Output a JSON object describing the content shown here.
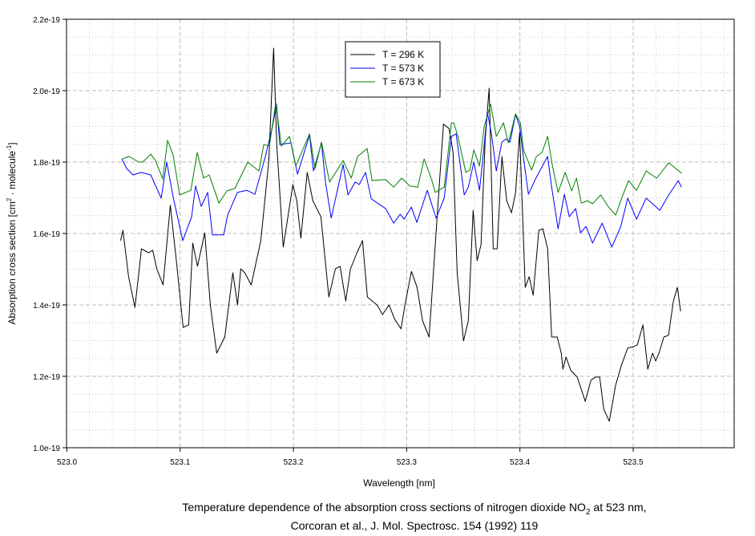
{
  "chart_data": {
    "type": "line",
    "xlabel": "Wavelength [nm]",
    "ylabel": {
      "main": "Absorption cross section [cm",
      "sup1": "2",
      "mid": " · molecule",
      "sup2": "-1",
      "end": "]"
    },
    "xlim": [
      523.0,
      523.59
    ],
    "ylim": [
      1e-19,
      2.2e-19
    ],
    "y_unit": "1e-19",
    "x_ticks": [
      523.0,
      523.1,
      523.2,
      523.3,
      523.4,
      523.5
    ],
    "x_tick_labels": [
      "523.0",
      "523.1",
      "523.2",
      "523.3",
      "523.4",
      "523.5"
    ],
    "y_ticks": [
      1.0,
      1.2,
      1.4,
      1.6,
      1.8,
      2.0,
      2.2
    ],
    "y_tick_labels": [
      "1.0e-19",
      "1.2e-19",
      "1.4e-19",
      "1.6e-19",
      "1.8e-19",
      "2.0e-19",
      "2.2e-19"
    ],
    "grid": true,
    "legend_position": "top-center",
    "series": [
      {
        "name": "T = 296 K",
        "color": "#000000",
        "x": [
          523.0474,
          523.0495,
          523.0544,
          523.0601,
          523.0658,
          523.0721,
          523.0757,
          523.0793,
          523.0849,
          523.0913,
          523.097,
          523.1026,
          523.1075,
          523.1111,
          523.1153,
          523.1217,
          523.1266,
          523.1323,
          523.1394,
          523.1465,
          523.1507,
          523.1535,
          523.1571,
          523.1627,
          523.1712,
          523.1783,
          523.1825,
          523.1853,
          523.191,
          523.1995,
          523.203,
          523.2066,
          523.2122,
          523.2171,
          523.2243,
          523.2313,
          523.237,
          523.2412,
          523.2462,
          523.2504,
          523.2561,
          523.261,
          523.2653,
          523.2738,
          523.2787,
          523.2844,
          523.2894,
          523.295,
          523.2985,
          523.3042,
          523.3092,
          523.3141,
          523.3198,
          523.3269,
          523.3325,
          523.3374,
          523.341,
          523.3446,
          523.3502,
          523.3544,
          523.3587,
          523.3622,
          523.3657,
          523.3693,
          523.3728,
          523.3764,
          523.3799,
          523.3841,
          523.3883,
          523.3926,
          523.3962,
          523.3997,
          523.4047,
          523.4082,
          523.4117,
          523.4167,
          523.4203,
          523.4245,
          523.428,
          523.4329,
          523.4365,
          523.4379,
          523.4407,
          523.445,
          523.4506,
          523.4577,
          523.4627,
          523.4669,
          523.4704,
          523.474,
          523.4789,
          523.4845,
          523.4896,
          523.4952,
          523.5002,
          523.5037,
          523.5086,
          523.5129,
          523.5171,
          523.5199,
          523.5228,
          523.5271,
          523.5312,
          523.5355,
          523.5391,
          523.5419
        ],
        "y": [
          1.58,
          1.609,
          1.479,
          1.393,
          1.557,
          1.546,
          1.553,
          1.501,
          1.456,
          1.679,
          1.512,
          1.337,
          1.344,
          1.573,
          1.508,
          1.602,
          1.4,
          1.265,
          1.31,
          1.49,
          1.4,
          1.501,
          1.49,
          1.456,
          1.58,
          1.804,
          2.119,
          1.849,
          1.562,
          1.737,
          1.692,
          1.587,
          1.771,
          1.692,
          1.647,
          1.422,
          1.501,
          1.508,
          1.411,
          1.501,
          1.546,
          1.58,
          1.422,
          1.4,
          1.373,
          1.4,
          1.36,
          1.333,
          1.4,
          1.494,
          1.449,
          1.355,
          1.31,
          1.647,
          1.906,
          1.894,
          1.827,
          1.49,
          1.299,
          1.355,
          1.665,
          1.524,
          1.569,
          1.861,
          2.007,
          1.557,
          1.557,
          1.816,
          1.692,
          1.658,
          1.715,
          1.883,
          1.449,
          1.479,
          1.427,
          1.609,
          1.613,
          1.557,
          1.31,
          1.31,
          1.265,
          1.22,
          1.254,
          1.216,
          1.198,
          1.13,
          1.189,
          1.198,
          1.198,
          1.108,
          1.074,
          1.175,
          1.231,
          1.279,
          1.283,
          1.288,
          1.344,
          1.22,
          1.265,
          1.243,
          1.265,
          1.31,
          1.315,
          1.411,
          1.449,
          1.382
        ]
      },
      {
        "name": "T = 573 K",
        "color": "#0000ff",
        "x": [
          523.0485,
          523.0527,
          523.0584,
          523.0655,
          523.074,
          523.0832,
          523.0881,
          523.0938,
          523.1023,
          523.1101,
          523.1136,
          523.1186,
          523.1243,
          523.1285,
          523.1384,
          523.142,
          523.1505,
          523.1589,
          523.166,
          523.1752,
          523.1816,
          523.1851,
          523.188,
          523.1979,
          523.2036,
          523.2142,
          523.2177,
          523.2248,
          523.2283,
          523.2333,
          523.2439,
          523.2482,
          523.2545,
          523.2581,
          523.2637,
          523.2687,
          523.2814,
          523.2885,
          523.2942,
          523.2977,
          523.3041,
          523.309,
          523.3182,
          523.326,
          523.3331,
          523.3395,
          523.3437,
          523.3508,
          523.3544,
          523.3593,
          523.3643,
          523.3678,
          523.3713,
          523.3749,
          523.3791,
          523.3841,
          523.3876,
          523.3912,
          523.3961,
          523.3997,
          523.4032,
          523.4075,
          523.4138,
          523.4244,
          523.428,
          523.4337,
          523.4393,
          523.4436,
          523.4492,
          523.4535,
          523.4584,
          523.4641,
          523.4726,
          523.4811,
          523.4889,
          523.4952,
          523.503,
          523.5115,
          523.5236,
          523.5314,
          523.5398,
          523.5427
        ],
        "y": [
          1.809,
          1.782,
          1.764,
          1.771,
          1.764,
          1.699,
          1.8,
          1.703,
          1.58,
          1.647,
          1.733,
          1.676,
          1.715,
          1.596,
          1.596,
          1.652,
          1.715,
          1.721,
          1.71,
          1.816,
          1.901,
          1.962,
          1.849,
          1.854,
          1.766,
          1.876,
          1.775,
          1.854,
          1.744,
          1.643,
          1.793,
          1.708,
          1.744,
          1.737,
          1.771,
          1.697,
          1.67,
          1.629,
          1.654,
          1.64,
          1.674,
          1.631,
          1.721,
          1.643,
          1.699,
          1.872,
          1.879,
          1.708,
          1.73,
          1.8,
          1.721,
          1.827,
          1.939,
          1.879,
          1.775,
          1.856,
          1.865,
          1.856,
          1.933,
          1.901,
          1.811,
          1.71,
          1.753,
          1.816,
          1.73,
          1.613,
          1.71,
          1.647,
          1.67,
          1.602,
          1.62,
          1.573,
          1.629,
          1.562,
          1.618,
          1.699,
          1.64,
          1.699,
          1.665,
          1.708,
          1.748,
          1.73
        ]
      },
      {
        "name": "T = 673 K",
        "color": "#008000",
        "x": [
          523.0492,
          523.0549,
          523.0634,
          523.0669,
          523.074,
          523.0782,
          523.0846,
          523.0889,
          523.0938,
          523.0995,
          523.1094,
          523.1151,
          523.1207,
          523.1257,
          523.1342,
          523.1412,
          523.1483,
          523.1597,
          523.1696,
          523.1738,
          523.1788,
          523.1844,
          523.1894,
          523.1965,
          523.2021,
          523.2142,
          523.2191,
          523.2248,
          523.2319,
          523.2439,
          523.251,
          523.2567,
          523.2651,
          523.2694,
          523.2814,
          523.2885,
          523.2956,
          523.3027,
          523.3098,
          523.3154,
          523.3218,
          523.3253,
          523.3331,
          523.3395,
          523.3416,
          523.3452,
          523.3522,
          523.3558,
          523.3593,
          523.3643,
          523.3685,
          523.3742,
          523.3791,
          523.3855,
          523.3898,
          523.3961,
          523.4004,
          523.4032,
          523.4103,
          523.4145,
          523.4195,
          523.4244,
          523.4287,
          523.4337,
          523.44,
          523.4457,
          523.4499,
          523.4542,
          523.4598,
          523.4641,
          523.4712,
          523.4783,
          523.4846,
          523.4903,
          523.496,
          523.503,
          523.5115,
          523.5207,
          523.5314,
          523.5427
        ],
        "y": [
          1.809,
          1.816,
          1.8,
          1.8,
          1.822,
          1.804,
          1.753,
          1.861,
          1.82,
          1.708,
          1.721,
          1.827,
          1.755,
          1.764,
          1.685,
          1.719,
          1.726,
          1.8,
          1.775,
          1.849,
          1.845,
          1.966,
          1.845,
          1.872,
          1.789,
          1.879,
          1.782,
          1.856,
          1.744,
          1.804,
          1.755,
          1.816,
          1.838,
          1.748,
          1.751,
          1.73,
          1.755,
          1.733,
          1.73,
          1.809,
          1.753,
          1.715,
          1.73,
          1.91,
          1.91,
          1.872,
          1.771,
          1.778,
          1.834,
          1.789,
          1.901,
          1.962,
          1.872,
          1.91,
          1.854,
          1.935,
          1.91,
          1.834,
          1.778,
          1.816,
          1.827,
          1.872,
          1.789,
          1.715,
          1.771,
          1.719,
          1.755,
          1.685,
          1.692,
          1.683,
          1.708,
          1.674,
          1.652,
          1.703,
          1.748,
          1.721,
          1.775,
          1.755,
          1.798,
          1.769
        ]
      }
    ]
  },
  "caption": {
    "line1_pre": "Temperature dependence of the absorption cross sections of nitrogen dioxide NO",
    "line1_sub": "2",
    "line1_post": " at 523 nm,",
    "line2": "Corcoran et al., J. Mol. Spectrosc. 154 (1992) 119"
  }
}
